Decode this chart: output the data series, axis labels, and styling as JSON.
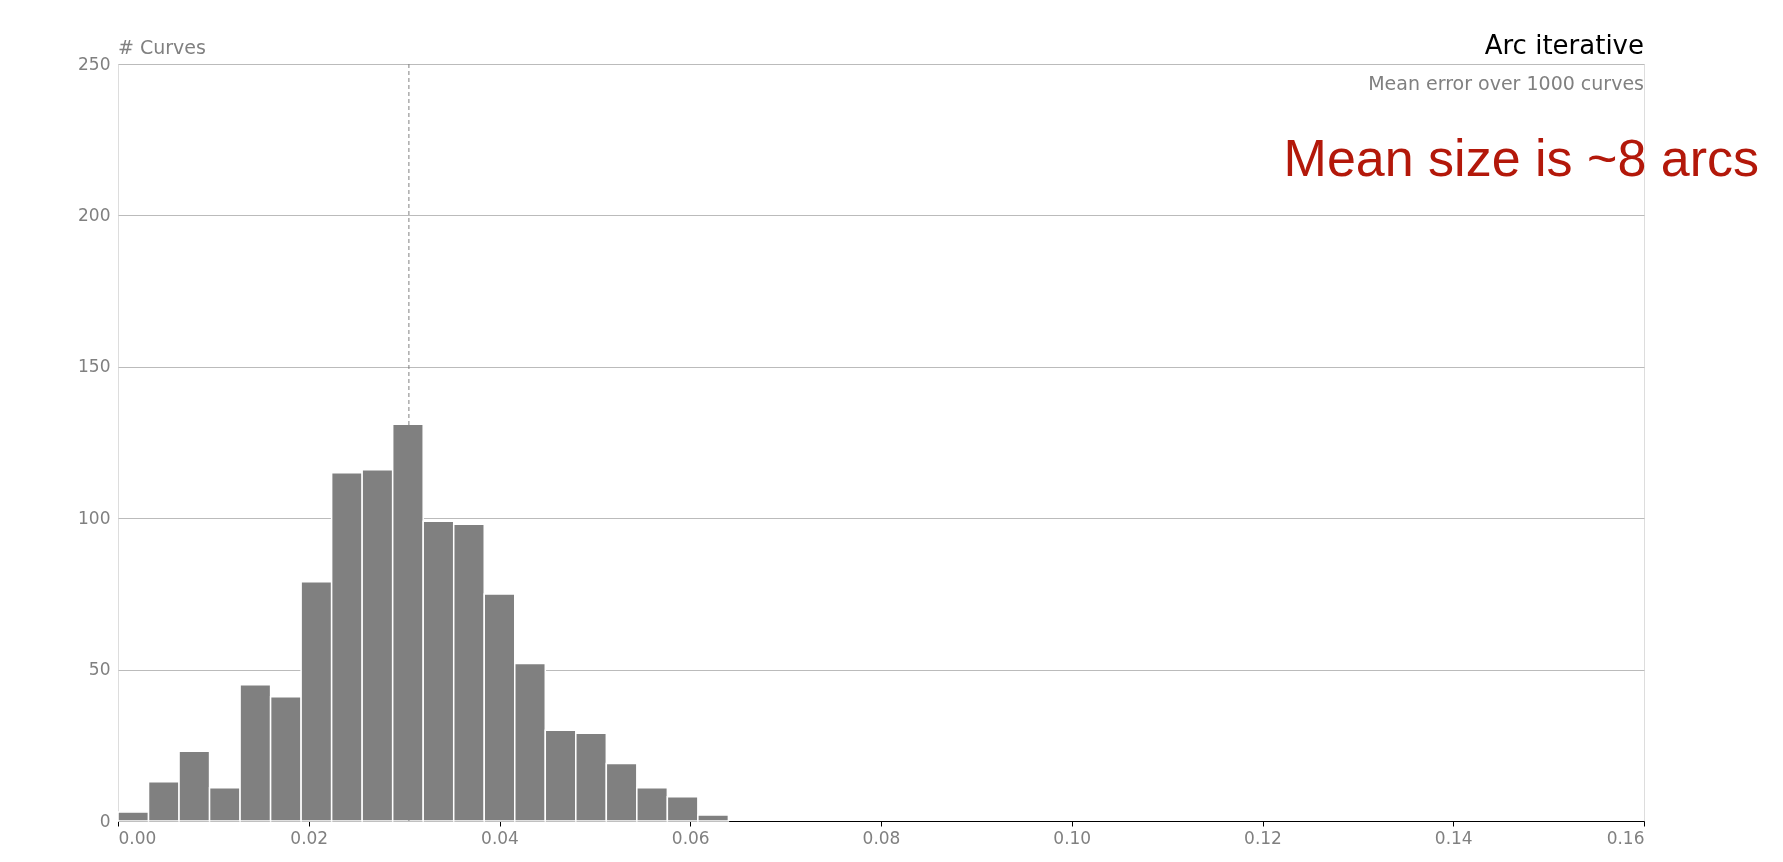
{
  "chart_data": {
    "type": "histogram",
    "title": "Arc iterative",
    "subtitle": "Mean error over 1000 curves",
    "ylabel": "# Curves",
    "annotations": [
      "Mean size is ~8 arcs"
    ],
    "bins": [
      0,
      0.0032,
      0.0064,
      0.0096,
      0.0128,
      0.016,
      0.0192,
      0.0224,
      0.0256,
      0.0288,
      0.032,
      0.0352,
      0.0384,
      0.0416,
      0.0448,
      0.048,
      0.0512,
      0.0544,
      0.0576,
      0.0608,
      0.064
    ],
    "values": [
      3,
      13,
      23,
      11,
      45,
      41,
      79,
      115,
      116,
      131,
      99,
      98,
      75,
      52,
      30,
      29,
      19,
      11,
      8,
      2
    ],
    "color": "#808080",
    "xlim": [
      0,
      0.16
    ],
    "xticks": [
      {
        "value": 0,
        "label": "0.00"
      },
      {
        "value": 0.02,
        "label": "0.02"
      },
      {
        "value": 0.04,
        "label": "0.04"
      },
      {
        "value": 0.06,
        "label": "0.06"
      },
      {
        "value": 0.08,
        "label": "0.08"
      },
      {
        "value": 0.1,
        "label": "0.10"
      },
      {
        "value": 0.12,
        "label": "0.12"
      },
      {
        "value": 0.14,
        "label": "0.14"
      },
      {
        "value": 0.16,
        "label": "0.16"
      }
    ],
    "ylim": [
      0,
      250
    ],
    "yticks": [
      0,
      50,
      100,
      150,
      200,
      250
    ],
    "grid": "y",
    "ref_lines": [
      {
        "axis": "x",
        "value": 0.0305,
        "color": "#808080",
        "line_style": "dashed"
      }
    ]
  }
}
